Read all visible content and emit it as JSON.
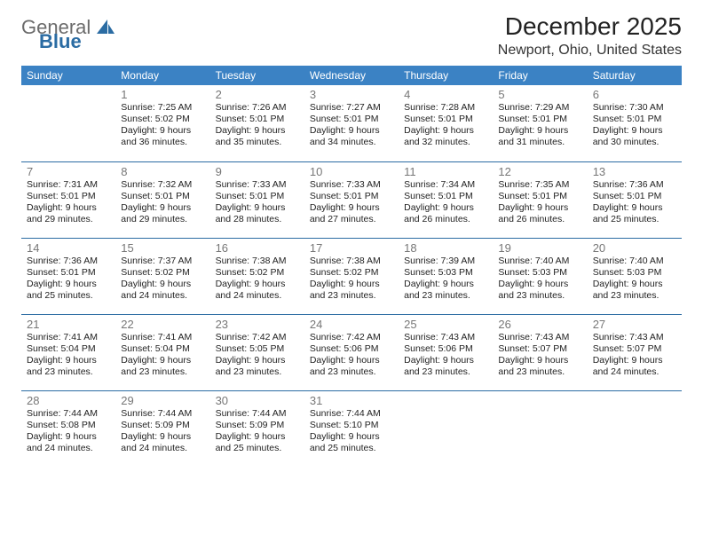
{
  "logo": {
    "word1": "General",
    "word2": "Blue"
  },
  "title": "December 2025",
  "location": "Newport, Ohio, United States",
  "colors": {
    "header_blue": "#3b82c4",
    "row_border": "#2b6ca3",
    "logo_gray": "#6b6b6b",
    "logo_blue": "#2b6ca3",
    "bg": "#ffffff"
  },
  "weekdays": [
    "Sunday",
    "Monday",
    "Tuesday",
    "Wednesday",
    "Thursday",
    "Friday",
    "Saturday"
  ],
  "weeks": [
    [
      null,
      {
        "n": "1",
        "sr": "Sunrise: 7:25 AM",
        "ss": "Sunset: 5:02 PM",
        "d1": "Daylight: 9 hours",
        "d2": "and 36 minutes."
      },
      {
        "n": "2",
        "sr": "Sunrise: 7:26 AM",
        "ss": "Sunset: 5:01 PM",
        "d1": "Daylight: 9 hours",
        "d2": "and 35 minutes."
      },
      {
        "n": "3",
        "sr": "Sunrise: 7:27 AM",
        "ss": "Sunset: 5:01 PM",
        "d1": "Daylight: 9 hours",
        "d2": "and 34 minutes."
      },
      {
        "n": "4",
        "sr": "Sunrise: 7:28 AM",
        "ss": "Sunset: 5:01 PM",
        "d1": "Daylight: 9 hours",
        "d2": "and 32 minutes."
      },
      {
        "n": "5",
        "sr": "Sunrise: 7:29 AM",
        "ss": "Sunset: 5:01 PM",
        "d1": "Daylight: 9 hours",
        "d2": "and 31 minutes."
      },
      {
        "n": "6",
        "sr": "Sunrise: 7:30 AM",
        "ss": "Sunset: 5:01 PM",
        "d1": "Daylight: 9 hours",
        "d2": "and 30 minutes."
      }
    ],
    [
      {
        "n": "7",
        "sr": "Sunrise: 7:31 AM",
        "ss": "Sunset: 5:01 PM",
        "d1": "Daylight: 9 hours",
        "d2": "and 29 minutes."
      },
      {
        "n": "8",
        "sr": "Sunrise: 7:32 AM",
        "ss": "Sunset: 5:01 PM",
        "d1": "Daylight: 9 hours",
        "d2": "and 29 minutes."
      },
      {
        "n": "9",
        "sr": "Sunrise: 7:33 AM",
        "ss": "Sunset: 5:01 PM",
        "d1": "Daylight: 9 hours",
        "d2": "and 28 minutes."
      },
      {
        "n": "10",
        "sr": "Sunrise: 7:33 AM",
        "ss": "Sunset: 5:01 PM",
        "d1": "Daylight: 9 hours",
        "d2": "and 27 minutes."
      },
      {
        "n": "11",
        "sr": "Sunrise: 7:34 AM",
        "ss": "Sunset: 5:01 PM",
        "d1": "Daylight: 9 hours",
        "d2": "and 26 minutes."
      },
      {
        "n": "12",
        "sr": "Sunrise: 7:35 AM",
        "ss": "Sunset: 5:01 PM",
        "d1": "Daylight: 9 hours",
        "d2": "and 26 minutes."
      },
      {
        "n": "13",
        "sr": "Sunrise: 7:36 AM",
        "ss": "Sunset: 5:01 PM",
        "d1": "Daylight: 9 hours",
        "d2": "and 25 minutes."
      }
    ],
    [
      {
        "n": "14",
        "sr": "Sunrise: 7:36 AM",
        "ss": "Sunset: 5:01 PM",
        "d1": "Daylight: 9 hours",
        "d2": "and 25 minutes."
      },
      {
        "n": "15",
        "sr": "Sunrise: 7:37 AM",
        "ss": "Sunset: 5:02 PM",
        "d1": "Daylight: 9 hours",
        "d2": "and 24 minutes."
      },
      {
        "n": "16",
        "sr": "Sunrise: 7:38 AM",
        "ss": "Sunset: 5:02 PM",
        "d1": "Daylight: 9 hours",
        "d2": "and 24 minutes."
      },
      {
        "n": "17",
        "sr": "Sunrise: 7:38 AM",
        "ss": "Sunset: 5:02 PM",
        "d1": "Daylight: 9 hours",
        "d2": "and 23 minutes."
      },
      {
        "n": "18",
        "sr": "Sunrise: 7:39 AM",
        "ss": "Sunset: 5:03 PM",
        "d1": "Daylight: 9 hours",
        "d2": "and 23 minutes."
      },
      {
        "n": "19",
        "sr": "Sunrise: 7:40 AM",
        "ss": "Sunset: 5:03 PM",
        "d1": "Daylight: 9 hours",
        "d2": "and 23 minutes."
      },
      {
        "n": "20",
        "sr": "Sunrise: 7:40 AM",
        "ss": "Sunset: 5:03 PM",
        "d1": "Daylight: 9 hours",
        "d2": "and 23 minutes."
      }
    ],
    [
      {
        "n": "21",
        "sr": "Sunrise: 7:41 AM",
        "ss": "Sunset: 5:04 PM",
        "d1": "Daylight: 9 hours",
        "d2": "and 23 minutes."
      },
      {
        "n": "22",
        "sr": "Sunrise: 7:41 AM",
        "ss": "Sunset: 5:04 PM",
        "d1": "Daylight: 9 hours",
        "d2": "and 23 minutes."
      },
      {
        "n": "23",
        "sr": "Sunrise: 7:42 AM",
        "ss": "Sunset: 5:05 PM",
        "d1": "Daylight: 9 hours",
        "d2": "and 23 minutes."
      },
      {
        "n": "24",
        "sr": "Sunrise: 7:42 AM",
        "ss": "Sunset: 5:06 PM",
        "d1": "Daylight: 9 hours",
        "d2": "and 23 minutes."
      },
      {
        "n": "25",
        "sr": "Sunrise: 7:43 AM",
        "ss": "Sunset: 5:06 PM",
        "d1": "Daylight: 9 hours",
        "d2": "and 23 minutes."
      },
      {
        "n": "26",
        "sr": "Sunrise: 7:43 AM",
        "ss": "Sunset: 5:07 PM",
        "d1": "Daylight: 9 hours",
        "d2": "and 23 minutes."
      },
      {
        "n": "27",
        "sr": "Sunrise: 7:43 AM",
        "ss": "Sunset: 5:07 PM",
        "d1": "Daylight: 9 hours",
        "d2": "and 24 minutes."
      }
    ],
    [
      {
        "n": "28",
        "sr": "Sunrise: 7:44 AM",
        "ss": "Sunset: 5:08 PM",
        "d1": "Daylight: 9 hours",
        "d2": "and 24 minutes."
      },
      {
        "n": "29",
        "sr": "Sunrise: 7:44 AM",
        "ss": "Sunset: 5:09 PM",
        "d1": "Daylight: 9 hours",
        "d2": "and 24 minutes."
      },
      {
        "n": "30",
        "sr": "Sunrise: 7:44 AM",
        "ss": "Sunset: 5:09 PM",
        "d1": "Daylight: 9 hours",
        "d2": "and 25 minutes."
      },
      {
        "n": "31",
        "sr": "Sunrise: 7:44 AM",
        "ss": "Sunset: 5:10 PM",
        "d1": "Daylight: 9 hours",
        "d2": "and 25 minutes."
      },
      null,
      null,
      null
    ]
  ]
}
